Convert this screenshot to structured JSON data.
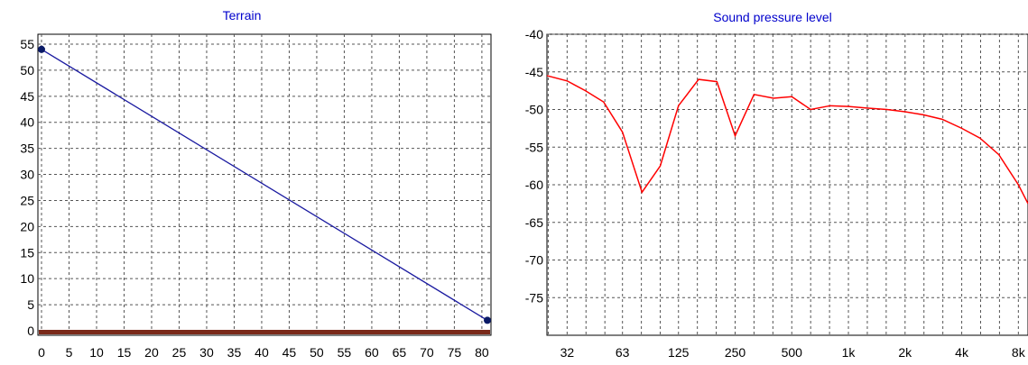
{
  "chart_data": [
    {
      "type": "line",
      "title": "Terrain",
      "xlabel": "",
      "ylabel": "",
      "x_ticks": [
        "0",
        "5",
        "10",
        "15",
        "20",
        "25",
        "30",
        "35",
        "40",
        "45",
        "50",
        "55",
        "60",
        "65",
        "70",
        "75",
        "80"
      ],
      "y_ticks": [
        "0",
        "5",
        "10",
        "15",
        "20",
        "25",
        "30",
        "35",
        "40",
        "45",
        "50",
        "55"
      ],
      "xlim": [
        0,
        81
      ],
      "ylim": [
        0,
        55
      ],
      "grid": true,
      "series": [
        {
          "color": "#1a1aa0",
          "x": [
            0,
            81
          ],
          "y": [
            54,
            2
          ],
          "markers": true
        },
        {
          "color": "#7a2a1a",
          "x": [
            0,
            81
          ],
          "y": [
            0,
            0
          ],
          "markers": false
        }
      ]
    },
    {
      "type": "line",
      "title": "Sound pressure level",
      "xlabel": "",
      "ylabel": "",
      "x_scale": "log",
      "x_ticks": [
        "32",
        "63",
        "125",
        "250",
        "500",
        "1k",
        "2k",
        "4k",
        "8k"
      ],
      "y_ticks": [
        "-40",
        "-45",
        "-50",
        "-55",
        "-60",
        "-65",
        "-70",
        "-75"
      ],
      "xlim": [
        25,
        9000
      ],
      "ylim": [
        -80,
        -40
      ],
      "grid": true,
      "series": [
        {
          "color": "#ff0000",
          "x": [
            25,
            32,
            40,
            50,
            63,
            80,
            100,
            125,
            160,
            200,
            250,
            315,
            400,
            500,
            630,
            800,
            1000,
            1250,
            1600,
            2000,
            2500,
            3150,
            4000,
            5000,
            6300,
            8000,
            9000
          ],
          "y": [
            -45.5,
            -46.2,
            -47.5,
            -49,
            -53,
            -61,
            -57.5,
            -49.5,
            -46,
            -46.3,
            -53.5,
            -48,
            -48.5,
            -48.3,
            -50,
            -49.5,
            -49.6,
            -49.8,
            -50,
            -50.3,
            -50.7,
            -51.3,
            -52.5,
            -53.8,
            -56,
            -60,
            -62.5
          ],
          "markers": false
        }
      ]
    }
  ]
}
